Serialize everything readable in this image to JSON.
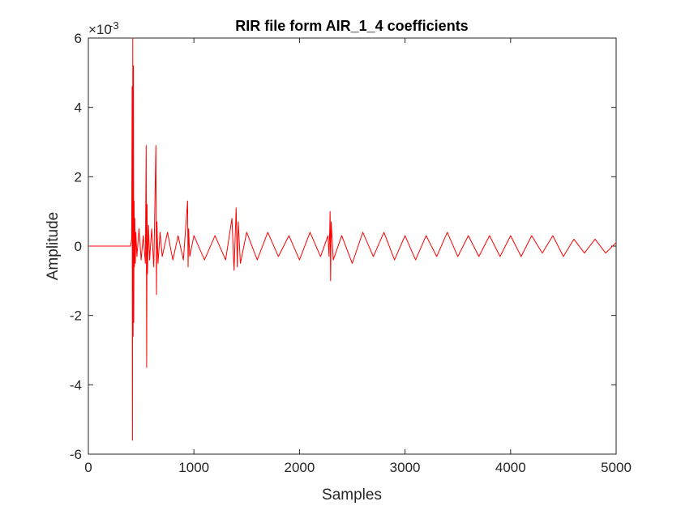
{
  "chart_data": {
    "type": "line",
    "title": "RIR file form  AIR_1_4 coefficients",
    "xlabel": "Samples",
    "ylabel": "Amplitude",
    "xlim": [
      0,
      5000
    ],
    "ylim": [
      -0.006,
      0.006
    ],
    "x_ticks": [
      "0",
      "1000",
      "2000",
      "3000",
      "4000",
      "5000"
    ],
    "y_ticks": [
      "-6",
      "-4",
      "-2",
      "0",
      "2",
      "4",
      "6"
    ],
    "y_exponent": {
      "base": "×10",
      "power": "-3"
    },
    "grid": false,
    "legend": "none",
    "line_color": "#ff0000",
    "series": [
      {
        "x": [
          0,
          400,
          410,
          415,
          418,
          421,
          424,
          427,
          430,
          433,
          436,
          440,
          445,
          450,
          460,
          480,
          500,
          520,
          540,
          548,
          552,
          556,
          560,
          570,
          580,
          600,
          620,
          640,
          645,
          650,
          660,
          680,
          700,
          750,
          800,
          850,
          900,
          940,
          945,
          950,
          960,
          1000,
          1100,
          1200,
          1300,
          1360,
          1380,
          1400,
          1410,
          1420,
          1440,
          1500,
          1600,
          1700,
          1800,
          1900,
          2000,
          2100,
          2200,
          2270,
          2280,
          2290,
          2295,
          2300,
          2320,
          2400,
          2500,
          2600,
          2700,
          2800,
          2900,
          3000,
          3100,
          3200,
          3300,
          3400,
          3500,
          3600,
          3700,
          3800,
          3900,
          4000,
          4100,
          4200,
          4300,
          4400,
          4500,
          4600,
          4700,
          4800,
          4900,
          5000
        ],
        "y": [
          0.0,
          0.0,
          0.0002,
          0.0046,
          -0.0056,
          0.006,
          -0.0026,
          0.0052,
          -0.0022,
          0.0013,
          -0.0006,
          0.0008,
          -0.0005,
          0.0004,
          -0.0003,
          0.0005,
          -0.0004,
          0.0003,
          -0.0005,
          0.0029,
          -0.0035,
          0.0012,
          -0.0008,
          0.0006,
          -0.0004,
          0.0005,
          -0.0006,
          0.0029,
          -0.0014,
          0.0007,
          -0.0005,
          0.0004,
          -0.0003,
          0.0004,
          -0.0004,
          0.0003,
          -0.0004,
          0.0013,
          -0.0006,
          0.0005,
          -0.0003,
          0.0003,
          -0.0004,
          0.0003,
          -0.0004,
          0.0008,
          -0.0007,
          0.0011,
          -0.0006,
          0.0007,
          -0.0005,
          0.0004,
          -0.0004,
          0.0004,
          -0.0003,
          0.0003,
          -0.0004,
          0.0004,
          -0.0003,
          0.0003,
          -0.0003,
          0.001,
          -0.001,
          0.0007,
          -0.0004,
          0.0003,
          -0.0005,
          0.0004,
          -0.0003,
          0.0004,
          -0.0004,
          0.0003,
          -0.0004,
          0.0003,
          -0.0003,
          0.0004,
          -0.0003,
          0.0003,
          -0.0003,
          0.0003,
          -0.0003,
          0.0003,
          -0.0003,
          0.0003,
          -0.0002,
          0.0003,
          -0.0003,
          0.0002,
          -0.0002,
          0.0002,
          -0.0002,
          0.0001
        ]
      }
    ]
  }
}
